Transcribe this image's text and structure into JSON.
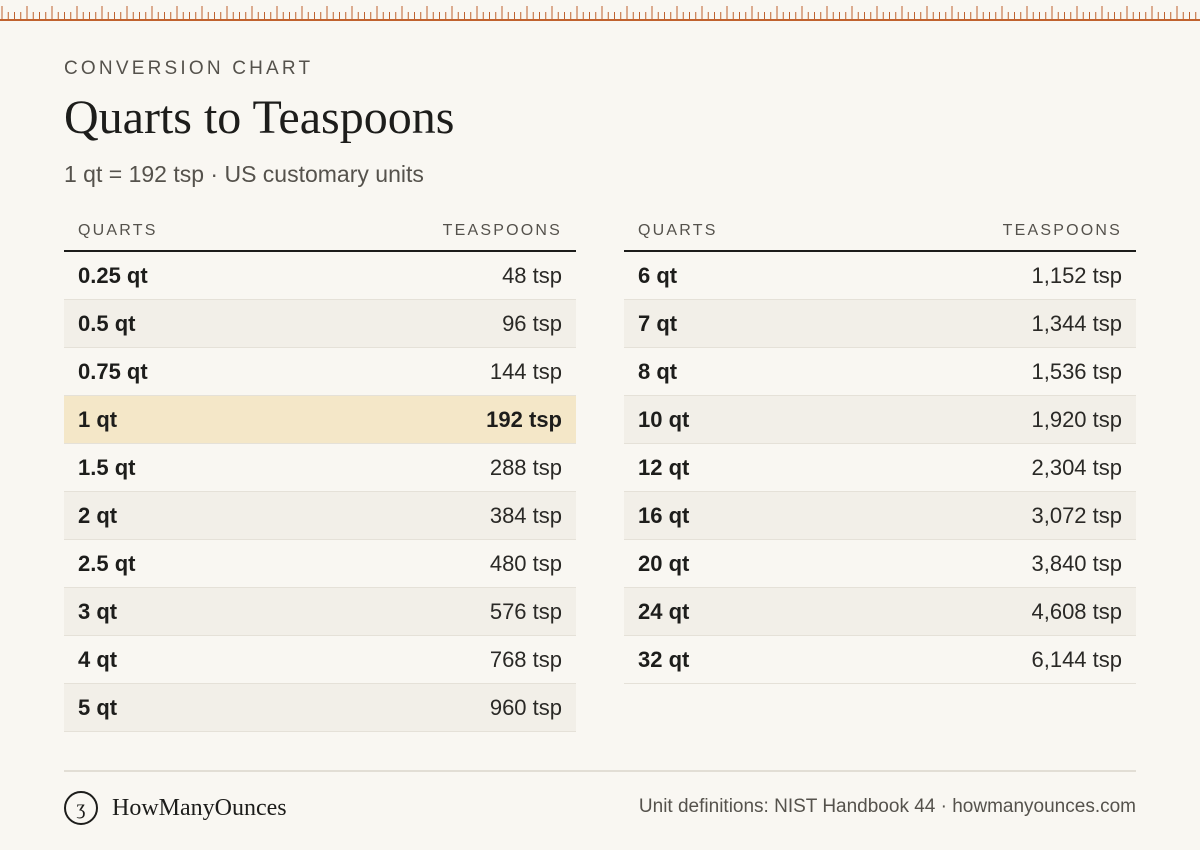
{
  "header": {
    "eyebrow": "CONVERSION CHART",
    "title": "Quarts to Teaspoons",
    "subtitle": "1 qt = 192 tsp · US customary units"
  },
  "table_left": {
    "col_quarts": "QUARTS",
    "col_teaspoons": "TEASPOONS",
    "rows": [
      {
        "quarts": "0.25 qt",
        "teaspoons": "48 tsp"
      },
      {
        "quarts": "0.5 qt",
        "teaspoons": "96 tsp"
      },
      {
        "quarts": "0.75 qt",
        "teaspoons": "144 tsp"
      },
      {
        "quarts": "1 qt",
        "teaspoons": "192 tsp"
      },
      {
        "quarts": "1.5 qt",
        "teaspoons": "288 tsp"
      },
      {
        "quarts": "2 qt",
        "teaspoons": "384 tsp"
      },
      {
        "quarts": "2.5 qt",
        "teaspoons": "480 tsp"
      },
      {
        "quarts": "3 qt",
        "teaspoons": "576 tsp"
      },
      {
        "quarts": "4 qt",
        "teaspoons": "768 tsp"
      },
      {
        "quarts": "5 qt",
        "teaspoons": "960 tsp"
      }
    ]
  },
  "table_right": {
    "col_quarts": "QUARTS",
    "col_teaspoons": "TEASPOONS",
    "rows": [
      {
        "quarts": "6 qt",
        "teaspoons": "1,152 tsp"
      },
      {
        "quarts": "7 qt",
        "teaspoons": "1,344 tsp"
      },
      {
        "quarts": "8 qt",
        "teaspoons": "1,536 tsp"
      },
      {
        "quarts": "10 qt",
        "teaspoons": "1,920 tsp"
      },
      {
        "quarts": "12 qt",
        "teaspoons": "2,304 tsp"
      },
      {
        "quarts": "16 qt",
        "teaspoons": "3,072 tsp"
      },
      {
        "quarts": "20 qt",
        "teaspoons": "3,840 tsp"
      },
      {
        "quarts": "24 qt",
        "teaspoons": "4,608 tsp"
      },
      {
        "quarts": "32 qt",
        "teaspoons": "6,144 tsp"
      }
    ]
  },
  "highlight_row": "1 qt",
  "footer": {
    "brand_mark": "ʒ",
    "brand_name": "HowManyOunces",
    "source": "Unit definitions: NIST Handbook 44 · howmanyounces.com"
  },
  "colors": {
    "background": "#f9f7f2",
    "ruler": "#c0622e",
    "highlight": "#f4e7c8",
    "alt_row": "#f2efe8"
  },
  "icons": {
    "brand": "ounce-glyph-icon",
    "ruler": "ruler-ticks"
  }
}
